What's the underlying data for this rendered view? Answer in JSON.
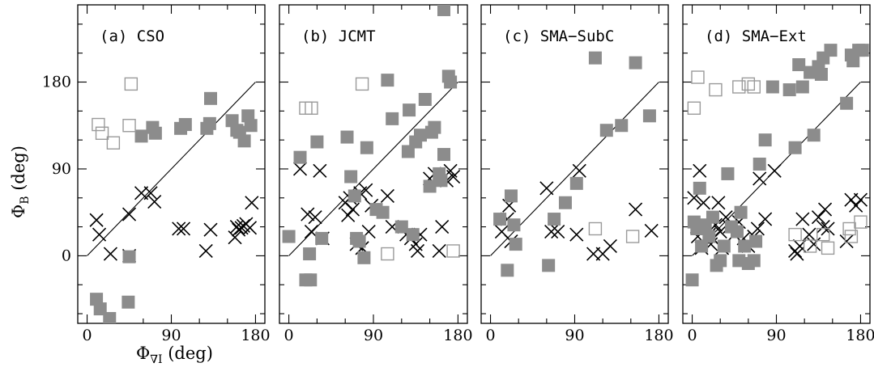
{
  "figure": {
    "xlabel_symbol": "Φ",
    "xlabel_sub": "∇I",
    "xlabel_unit": " (deg)",
    "ylabel_symbol": "Φ",
    "ylabel_sub": "B",
    "ylabel_unit": " (deg)"
  },
  "colors": {
    "filled": "#8c8c8c",
    "open": "#9a9a9a",
    "cross": "#000000"
  },
  "chart_data": [
    {
      "type": "scatter",
      "title": "(a) CSO",
      "xlim": [
        -10,
        190
      ],
      "ylim": [
        -70,
        260
      ],
      "xticks": [
        "0",
        "90",
        "180"
      ],
      "yticks": [
        "0",
        "90",
        "180"
      ],
      "show_xticks": true,
      "show_yticks": true,
      "diagonal": [
        [
          0,
          0
        ],
        [
          180,
          180
        ]
      ],
      "series": [
        {
          "marker": "cross",
          "points": [
            [
              10,
              37
            ],
            [
              13,
              22
            ],
            [
              25,
              2
            ],
            [
              45,
              43
            ],
            [
              45,
              0
            ],
            [
              58,
              65
            ],
            [
              68,
              65
            ],
            [
              72,
              56
            ],
            [
              98,
              28
            ],
            [
              103,
              28
            ],
            [
              127,
              5
            ],
            [
              132,
              27
            ],
            [
              158,
              19
            ],
            [
              160,
              30
            ],
            [
              162,
              27
            ],
            [
              165,
              29
            ],
            [
              167,
              31
            ],
            [
              170,
              33
            ],
            [
              174,
              29
            ],
            [
              176,
              55
            ]
          ]
        },
        {
          "marker": "filled",
          "points": [
            [
              10,
              -45
            ],
            [
              14,
              -55
            ],
            [
              24,
              -65
            ],
            [
              44,
              -48
            ],
            [
              45,
              -1
            ],
            [
              58,
              124
            ],
            [
              70,
              133
            ],
            [
              73,
              127
            ],
            [
              100,
              132
            ],
            [
              105,
              136
            ],
            [
              128,
              132
            ],
            [
              132,
              163
            ],
            [
              131,
              137
            ],
            [
              155,
              140
            ],
            [
              160,
              130
            ],
            [
              163,
              128
            ],
            [
              168,
              119
            ],
            [
              172,
              145
            ],
            [
              175,
              135
            ]
          ]
        },
        {
          "marker": "open",
          "points": [
            [
              12,
              136
            ],
            [
              16,
              127
            ],
            [
              28,
              117
            ],
            [
              45,
              135
            ],
            [
              47,
              178
            ]
          ]
        }
      ]
    },
    {
      "type": "scatter",
      "title": "(b) JCMT",
      "xlim": [
        -10,
        190
      ],
      "ylim": [
        -70,
        260
      ],
      "xticks": [
        "0",
        "90",
        "180"
      ],
      "yticks": [],
      "show_xticks": true,
      "show_yticks": false,
      "diagonal": [
        [
          0,
          0
        ],
        [
          180,
          180
        ]
      ],
      "series": [
        {
          "marker": "cross",
          "points": [
            [
              12,
              90
            ],
            [
              20,
              43
            ],
            [
              24,
              25
            ],
            [
              28,
              40
            ],
            [
              33,
              88
            ],
            [
              36,
              18
            ],
            [
              60,
              55
            ],
            [
              63,
              42
            ],
            [
              65,
              60
            ],
            [
              68,
              48
            ],
            [
              72,
              12
            ],
            [
              76,
              65
            ],
            [
              78,
              8
            ],
            [
              82,
              68
            ],
            [
              85,
              25
            ],
            [
              88,
              52
            ],
            [
              105,
              62
            ],
            [
              110,
              30
            ],
            [
              125,
              22
            ],
            [
              130,
              18
            ],
            [
              135,
              12
            ],
            [
              137,
              5
            ],
            [
              140,
              22
            ],
            [
              150,
              80
            ],
            [
              155,
              85
            ],
            [
              163,
              30
            ],
            [
              168,
              78
            ],
            [
              172,
              88
            ],
            [
              175,
              82
            ],
            [
              160,
              5
            ]
          ]
        },
        {
          "marker": "filled",
          "points": [
            [
              0,
              20
            ],
            [
              12,
              102
            ],
            [
              18,
              -25
            ],
            [
              22,
              2
            ],
            [
              23,
              -25
            ],
            [
              30,
              118
            ],
            [
              35,
              18
            ],
            [
              62,
              123
            ],
            [
              66,
              82
            ],
            [
              70,
              62
            ],
            [
              72,
              18
            ],
            [
              75,
              15
            ],
            [
              80,
              -2
            ],
            [
              83,
              112
            ],
            [
              93,
              48
            ],
            [
              100,
              45
            ],
            [
              105,
              182
            ],
            [
              110,
              142
            ],
            [
              120,
              30
            ],
            [
              127,
              108
            ],
            [
              128,
              151
            ],
            [
              132,
              22
            ],
            [
              135,
              118
            ],
            [
              140,
              125
            ],
            [
              145,
              162
            ],
            [
              150,
              72
            ],
            [
              152,
              128
            ],
            [
              155,
              133
            ],
            [
              160,
              85
            ],
            [
              162,
              78
            ],
            [
              165,
              105
            ],
            [
              170,
              186
            ],
            [
              172,
              180
            ],
            [
              165,
              255
            ]
          ]
        },
        {
          "marker": "open",
          "points": [
            [
              18,
              153
            ],
            [
              24,
              153
            ],
            [
              78,
              178
            ],
            [
              105,
              2
            ],
            [
              175,
              5
            ]
          ]
        }
      ]
    },
    {
      "type": "scatter",
      "title": "(c) SMA−SubC",
      "xlim": [
        -10,
        190
      ],
      "ylim": [
        -70,
        260
      ],
      "xticks": [
        "0",
        "90",
        "180"
      ],
      "yticks": [],
      "show_xticks": true,
      "show_yticks": false,
      "diagonal": [
        [
          0,
          0
        ],
        [
          180,
          180
        ]
      ],
      "series": [
        {
          "marker": "cross",
          "points": [
            [
              12,
              25
            ],
            [
              18,
              38
            ],
            [
              20,
              52
            ],
            [
              22,
              15
            ],
            [
              60,
              70
            ],
            [
              65,
              25
            ],
            [
              72,
              25
            ],
            [
              92,
              22
            ],
            [
              95,
              88
            ],
            [
              110,
              2
            ],
            [
              120,
              2
            ],
            [
              128,
              10
            ],
            [
              155,
              48
            ],
            [
              172,
              26
            ]
          ]
        },
        {
          "marker": "filled",
          "points": [
            [
              10,
              38
            ],
            [
              18,
              -15
            ],
            [
              22,
              62
            ],
            [
              25,
              32
            ],
            [
              27,
              12
            ],
            [
              62,
              -10
            ],
            [
              68,
              38
            ],
            [
              80,
              55
            ],
            [
              92,
              75
            ],
            [
              112,
              205
            ],
            [
              124,
              130
            ],
            [
              140,
              135
            ],
            [
              155,
              200
            ],
            [
              170,
              145
            ]
          ]
        },
        {
          "marker": "open",
          "points": [
            [
              112,
              28
            ],
            [
              152,
              20
            ]
          ]
        }
      ]
    },
    {
      "type": "scatter",
      "title": "(d) SMA−Ext",
      "xlim": [
        -10,
        190
      ],
      "ylim": [
        -70,
        260
      ],
      "xticks": [
        "0",
        "90",
        "180"
      ],
      "yticks": [],
      "show_xticks": true,
      "show_yticks": false,
      "diagonal": [
        [
          0,
          0
        ],
        [
          180,
          180
        ]
      ],
      "series": [
        {
          "marker": "cross",
          "points": [
            [
              2,
              60
            ],
            [
              5,
              30
            ],
            [
              6,
              20
            ],
            [
              8,
              88
            ],
            [
              10,
              8
            ],
            [
              12,
              55
            ],
            [
              15,
              30
            ],
            [
              18,
              22
            ],
            [
              20,
              12
            ],
            [
              22,
              18
            ],
            [
              25,
              32
            ],
            [
              28,
              55
            ],
            [
              30,
              25
            ],
            [
              32,
              8
            ],
            [
              36,
              40
            ],
            [
              40,
              30
            ],
            [
              45,
              22
            ],
            [
              50,
              35
            ],
            [
              55,
              18
            ],
            [
              60,
              10
            ],
            [
              66,
              20
            ],
            [
              70,
              28
            ],
            [
              72,
              80
            ],
            [
              78,
              38
            ],
            [
              88,
              88
            ],
            [
              110,
              5
            ],
            [
              112,
              2
            ],
            [
              115,
              10
            ],
            [
              118,
              38
            ],
            [
              125,
              22
            ],
            [
              130,
              12
            ],
            [
              135,
              40
            ],
            [
              140,
              30
            ],
            [
              142,
              48
            ],
            [
              145,
              28
            ],
            [
              165,
              15
            ],
            [
              170,
              58
            ],
            [
              175,
              52
            ],
            [
              180,
              58
            ]
          ]
        },
        {
          "marker": "filled",
          "points": [
            [
              0,
              -25
            ],
            [
              2,
              35
            ],
            [
              5,
              28
            ],
            [
              8,
              70
            ],
            [
              10,
              10
            ],
            [
              14,
              32
            ],
            [
              18,
              20
            ],
            [
              22,
              40
            ],
            [
              26,
              -10
            ],
            [
              30,
              -5
            ],
            [
              34,
              10
            ],
            [
              38,
              85
            ],
            [
              42,
              30
            ],
            [
              48,
              25
            ],
            [
              50,
              -5
            ],
            [
              52,
              45
            ],
            [
              56,
              10
            ],
            [
              60,
              -8
            ],
            [
              66,
              -5
            ],
            [
              68,
              15
            ],
            [
              72,
              95
            ],
            [
              78,
              120
            ],
            [
              86,
              175
            ],
            [
              104,
              172
            ],
            [
              110,
              112
            ],
            [
              114,
              198
            ],
            [
              118,
              175
            ],
            [
              126,
              190
            ],
            [
              130,
              125
            ],
            [
              135,
              196
            ],
            [
              138,
              188
            ],
            [
              140,
              205
            ],
            [
              148,
              213
            ],
            [
              165,
              158
            ],
            [
              170,
              208
            ],
            [
              172,
              202
            ],
            [
              178,
              213
            ],
            [
              182,
              213
            ]
          ]
        },
        {
          "marker": "open",
          "points": [
            [
              2,
              153
            ],
            [
              6,
              185
            ],
            [
              25,
              172
            ],
            [
              50,
              175
            ],
            [
              60,
              178
            ],
            [
              66,
              175
            ],
            [
              110,
              22
            ],
            [
              126,
              10
            ],
            [
              140,
              22
            ],
            [
              145,
              8
            ],
            [
              168,
              28
            ],
            [
              170,
              20
            ],
            [
              180,
              35
            ]
          ]
        }
      ]
    }
  ]
}
